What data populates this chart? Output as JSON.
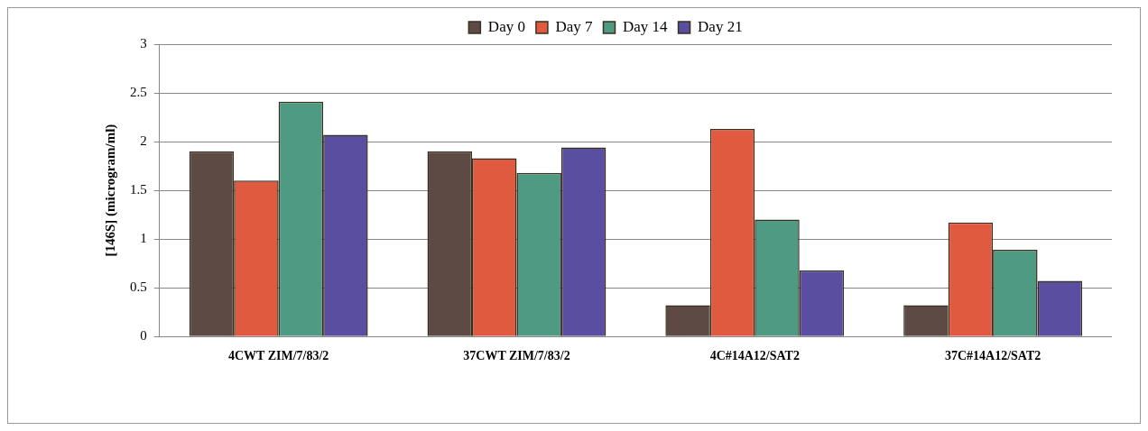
{
  "chart_data": {
    "type": "bar",
    "ylabel": "[146S] (microgram/ml)",
    "categories": [
      "4CWT ZIM/7/83/2",
      "37CWT ZIM/7/83/2",
      "4C#14A12/SAT2",
      "37C#14A12/SAT2"
    ],
    "series": [
      {
        "name": "Day 0",
        "color": "#5e4a44",
        "values": [
          1.9,
          1.9,
          0.32,
          0.32
        ]
      },
      {
        "name": "Day 7",
        "color": "#e05a40",
        "values": [
          1.6,
          1.83,
          2.13,
          1.17
        ]
      },
      {
        "name": "Day 14",
        "color": "#4e9a82",
        "values": [
          2.41,
          1.68,
          1.2,
          0.89
        ]
      },
      {
        "name": "Day 21",
        "color": "#5a4ea0",
        "values": [
          2.07,
          1.94,
          0.68,
          0.57
        ]
      }
    ],
    "ylim": [
      0,
      3
    ],
    "yticks": [
      0,
      0.5,
      1,
      1.5,
      2,
      2.5,
      3
    ],
    "grid": "y",
    "legend": "top"
  }
}
